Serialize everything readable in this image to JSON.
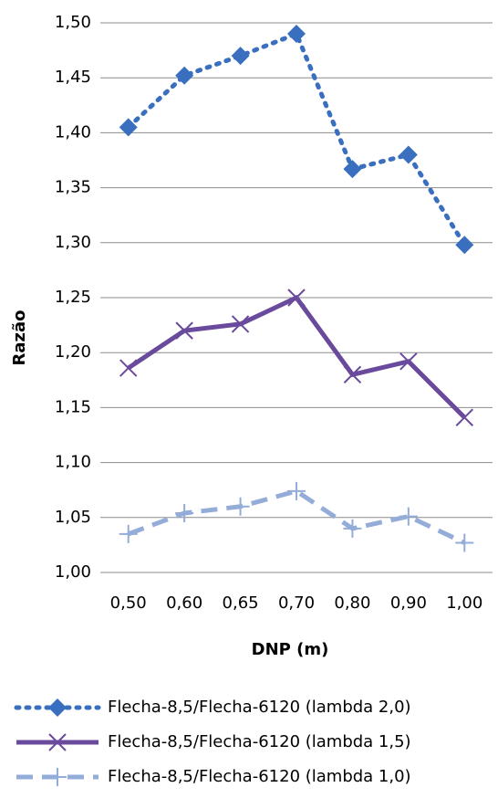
{
  "chart_data": {
    "type": "line",
    "x_label": "DNP (m)",
    "y_label": "Razão",
    "categories": [
      "0,50",
      "0,60",
      "0,65",
      "0,70",
      "0,80",
      "0,90",
      "1,00"
    ],
    "series": [
      {
        "name": "Flecha-8,5/Flecha-6120 (lambda 2,0)",
        "color": "#3a6fbf",
        "dash": "dotted",
        "marker": "diamond",
        "values": [
          1.405,
          1.452,
          1.47,
          1.49,
          1.367,
          1.38,
          1.298
        ]
      },
      {
        "name": "Flecha-8,5/Flecha-6120 (lambda 1,5)",
        "color": "#6a4a9c",
        "dash": "solid",
        "marker": "x",
        "values": [
          1.186,
          1.22,
          1.226,
          1.25,
          1.18,
          1.192,
          1.141
        ]
      },
      {
        "name": "Flecha-8,5/Flecha-6120 (lambda 1,0)",
        "color": "#94acd8",
        "dash": "dashed",
        "marker": "plus",
        "values": [
          1.035,
          1.054,
          1.06,
          1.074,
          1.04,
          1.051,
          1.027
        ]
      }
    ],
    "ylim": [
      1.0,
      1.5
    ],
    "yticks": [
      {
        "value": 1.0,
        "label": "1,00"
      },
      {
        "value": 1.05,
        "label": "1,05"
      },
      {
        "value": 1.1,
        "label": "1,10"
      },
      {
        "value": 1.15,
        "label": "1,15"
      },
      {
        "value": 1.2,
        "label": "1,20"
      },
      {
        "value": 1.25,
        "label": "1,25"
      },
      {
        "value": 1.3,
        "label": "1,30"
      },
      {
        "value": 1.35,
        "label": "1,35"
      },
      {
        "value": 1.4,
        "label": "1,40"
      },
      {
        "value": 1.45,
        "label": "1,45"
      },
      {
        "value": 1.5,
        "label": "1,50"
      }
    ],
    "grid": true,
    "legend": "bottom"
  }
}
